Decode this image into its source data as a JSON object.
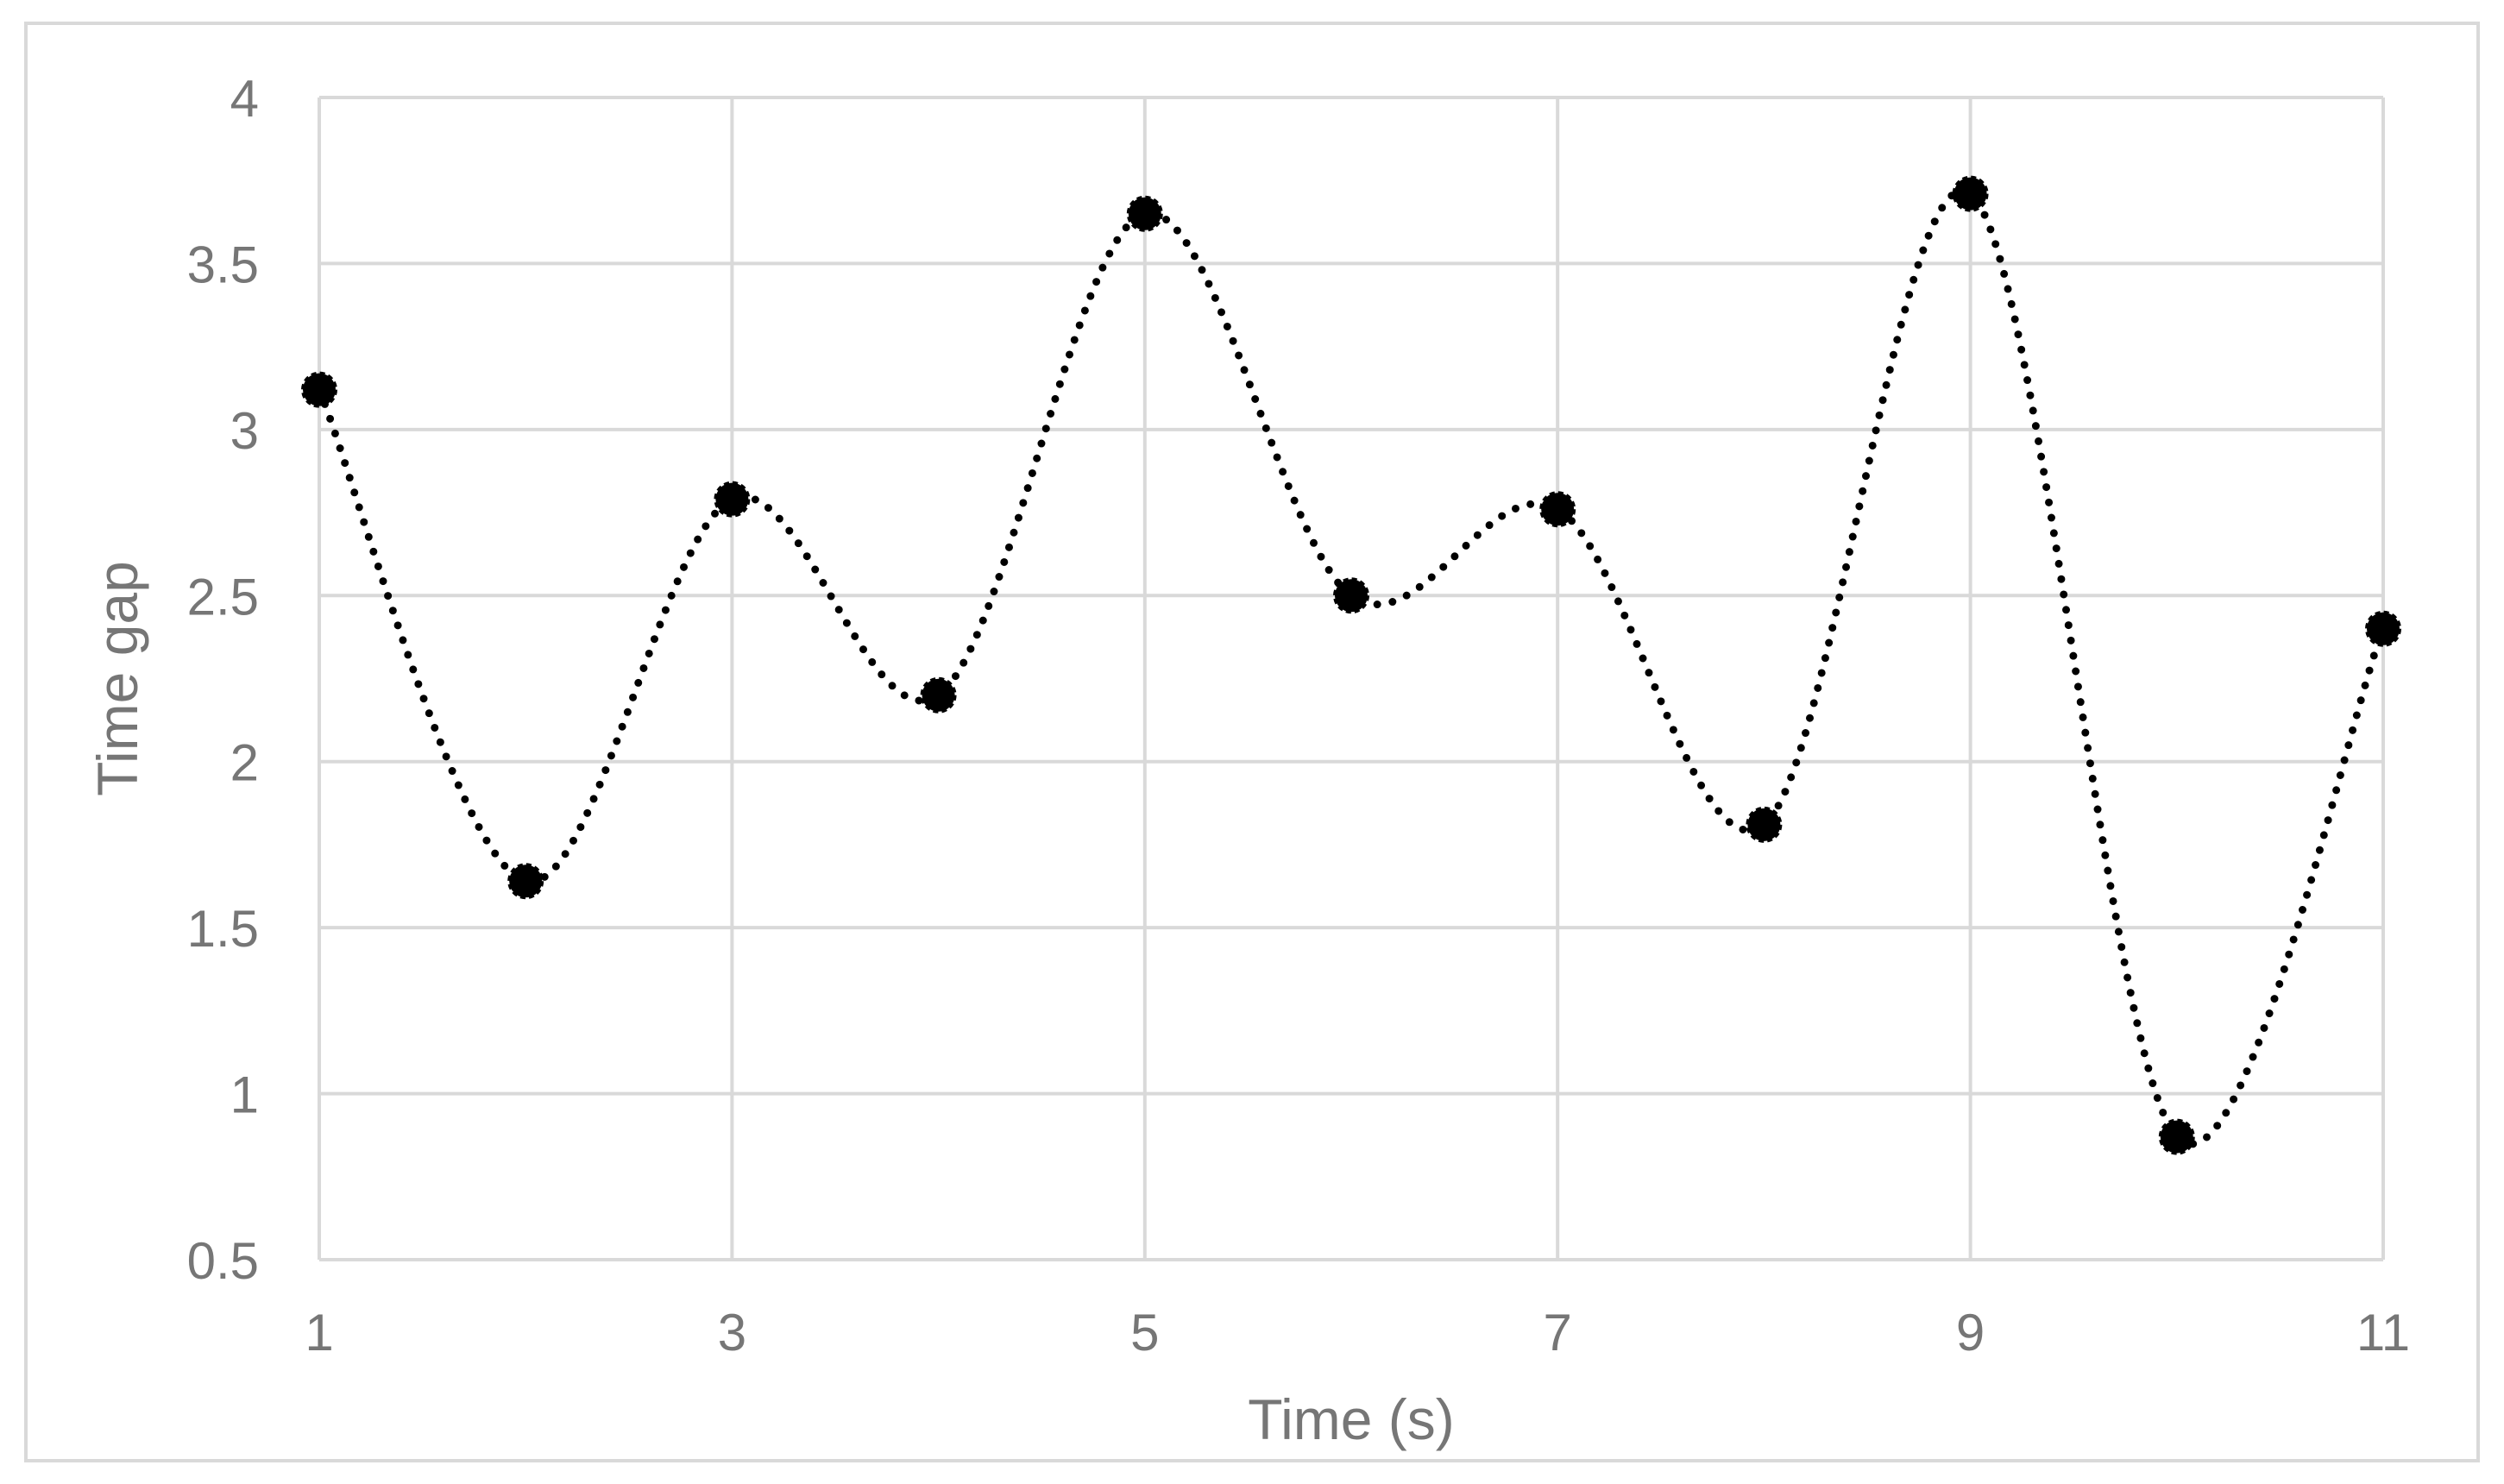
{
  "chart_data": {
    "type": "line",
    "title": "",
    "xlabel": "Time (s)",
    "ylabel": "Time gap",
    "xlim": [
      1,
      11
    ],
    "ylim": [
      0.5,
      4
    ],
    "x_ticks": [
      "1",
      "3",
      "5",
      "7",
      "9",
      "11"
    ],
    "y_ticks": [
      "0.5",
      "1",
      "1.5",
      "2",
      "2.5",
      "3",
      "3.5",
      "4"
    ],
    "grid": true,
    "legend": "none",
    "smooth": true,
    "line_style": "dotted",
    "marker": "circle",
    "series": [
      {
        "x": [
          1,
          2,
          3,
          4,
          5,
          6,
          7,
          8,
          9,
          10,
          11
        ],
        "values": [
          3.12,
          1.64,
          2.79,
          2.2,
          3.65,
          2.5,
          2.76,
          1.81,
          3.71,
          0.87,
          2.4
        ]
      }
    ],
    "colors": {
      "series": "#000000",
      "grid": "#d9d9d9",
      "text": "#767676"
    }
  }
}
